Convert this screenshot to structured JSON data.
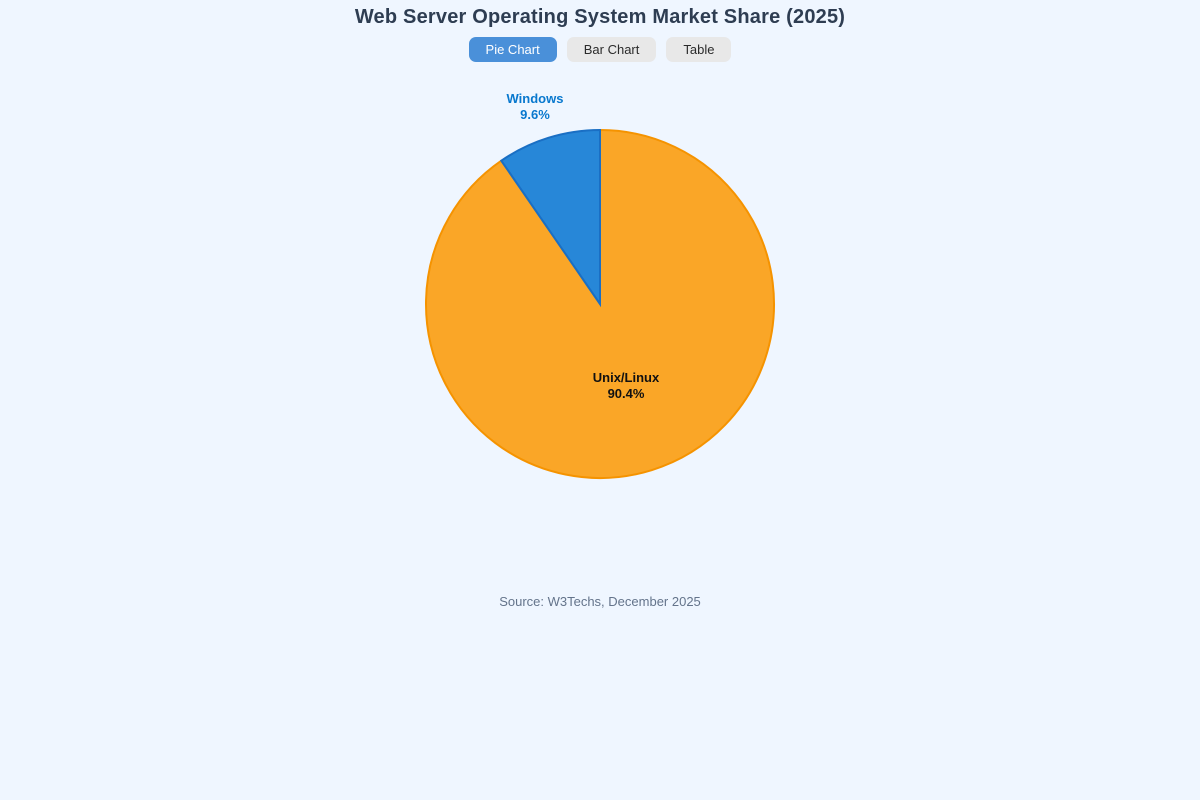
{
  "page": {
    "background_color": "#EFF6FF",
    "title": "Web Server Operating System Market Share (2025)",
    "source_note": "Source: W3Techs, December 2025"
  },
  "tabs": [
    {
      "label": "Pie Chart",
      "active": true
    },
    {
      "label": "Bar Chart",
      "active": false
    },
    {
      "label": "Table",
      "active": false
    }
  ],
  "colors": {
    "active_tab_bg": "#4A90D9",
    "active_tab_text": "#FFFFFF",
    "inactive_tab_bg": "#E8E8E8",
    "inactive_tab_text": "#2B2B2B",
    "title_text": "#2E3D52",
    "source_text": "#64748B"
  },
  "chart_data": {
    "type": "pie",
    "title": "Web Server Operating System Market Share (2025)",
    "categories": [
      "Unix/Linux",
      "Windows"
    ],
    "values": [
      90.4,
      9.6
    ],
    "start_angle_deg": 0,
    "direction": "clockwise",
    "legend": "none",
    "slices": [
      {
        "name": "Unix/Linux",
        "value": 90.4,
        "pct_label": "90.4%",
        "color": "#FAA627",
        "stroke_color": "#F59300",
        "label_color": "#111111",
        "label_position": "inside"
      },
      {
        "name": "Windows",
        "value": 9.6,
        "pct_label": "9.6%",
        "color": "#2787D8",
        "stroke_color": "#1A6FC4",
        "label_color": "#0878CE",
        "label_position": "outside-top"
      }
    ],
    "source": "Source: W3Techs, December 2025"
  }
}
